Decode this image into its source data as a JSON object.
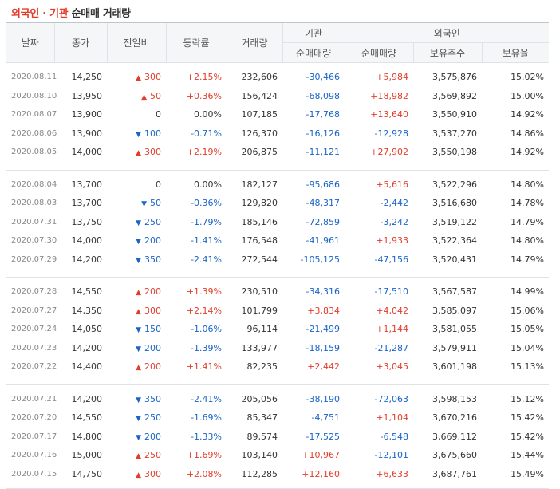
{
  "title": {
    "part1": "외국인 · 기관",
    "part2": "순매매 거래량"
  },
  "headers": {
    "date": "날짜",
    "close": "종가",
    "change": "전일비",
    "rate": "등락률",
    "volume": "거래량",
    "inst_group": "기관",
    "foreign_group": "외국인",
    "inst_net": "순매매량",
    "foreign_net": "순매매량",
    "holdings": "보유주수",
    "holding_ratio": "보유율"
  },
  "rows": [
    {
      "date": "2020.08.11",
      "close": "14,250",
      "dir": "up",
      "change": "300",
      "rate": "+2.15%",
      "volume": "232,606",
      "inst": "-30,466",
      "foreign": "+5,984",
      "holdings": "3,575,876",
      "ratio": "15.02%"
    },
    {
      "date": "2020.08.10",
      "close": "13,950",
      "dir": "up",
      "change": "50",
      "rate": "+0.36%",
      "volume": "156,424",
      "inst": "-68,098",
      "foreign": "+18,982",
      "holdings": "3,569,892",
      "ratio": "15.00%"
    },
    {
      "date": "2020.08.07",
      "close": "13,900",
      "dir": "none",
      "change": "0",
      "rate": "0.00%",
      "volume": "107,185",
      "inst": "-17,768",
      "foreign": "+13,640",
      "holdings": "3,550,910",
      "ratio": "14.92%"
    },
    {
      "date": "2020.08.06",
      "close": "13,900",
      "dir": "dn",
      "change": "100",
      "rate": "-0.71%",
      "volume": "126,370",
      "inst": "-16,126",
      "foreign": "-12,928",
      "holdings": "3,537,270",
      "ratio": "14.86%"
    },
    {
      "date": "2020.08.05",
      "close": "14,000",
      "dir": "up",
      "change": "300",
      "rate": "+2.19%",
      "volume": "206,875",
      "inst": "-11,121",
      "foreign": "+27,902",
      "holdings": "3,550,198",
      "ratio": "14.92%"
    },
    {
      "date": "2020.08.04",
      "close": "13,700",
      "dir": "none",
      "change": "0",
      "rate": "0.00%",
      "volume": "182,127",
      "inst": "-95,686",
      "foreign": "+5,616",
      "holdings": "3,522,296",
      "ratio": "14.80%"
    },
    {
      "date": "2020.08.03",
      "close": "13,700",
      "dir": "dn",
      "change": "50",
      "rate": "-0.36%",
      "volume": "129,820",
      "inst": "-48,317",
      "foreign": "-2,442",
      "holdings": "3,516,680",
      "ratio": "14.78%"
    },
    {
      "date": "2020.07.31",
      "close": "13,750",
      "dir": "dn",
      "change": "250",
      "rate": "-1.79%",
      "volume": "185,146",
      "inst": "-72,859",
      "foreign": "-3,242",
      "holdings": "3,519,122",
      "ratio": "14.79%"
    },
    {
      "date": "2020.07.30",
      "close": "14,000",
      "dir": "dn",
      "change": "200",
      "rate": "-1.41%",
      "volume": "176,548",
      "inst": "-41,961",
      "foreign": "+1,933",
      "holdings": "3,522,364",
      "ratio": "14.80%"
    },
    {
      "date": "2020.07.29",
      "close": "14,200",
      "dir": "dn",
      "change": "350",
      "rate": "-2.41%",
      "volume": "272,544",
      "inst": "-105,125",
      "foreign": "-47,156",
      "holdings": "3,520,431",
      "ratio": "14.79%"
    },
    {
      "date": "2020.07.28",
      "close": "14,550",
      "dir": "up",
      "change": "200",
      "rate": "+1.39%",
      "volume": "230,510",
      "inst": "-34,316",
      "foreign": "-17,510",
      "holdings": "3,567,587",
      "ratio": "14.99%"
    },
    {
      "date": "2020.07.27",
      "close": "14,350",
      "dir": "up",
      "change": "300",
      "rate": "+2.14%",
      "volume": "101,799",
      "inst": "+3,834",
      "foreign": "+4,042",
      "holdings": "3,585,097",
      "ratio": "15.06%"
    },
    {
      "date": "2020.07.24",
      "close": "14,050",
      "dir": "dn",
      "change": "150",
      "rate": "-1.06%",
      "volume": "96,114",
      "inst": "-21,499",
      "foreign": "+1,144",
      "holdings": "3,581,055",
      "ratio": "15.05%"
    },
    {
      "date": "2020.07.23",
      "close": "14,200",
      "dir": "dn",
      "change": "200",
      "rate": "-1.39%",
      "volume": "133,977",
      "inst": "-18,159",
      "foreign": "-21,287",
      "holdings": "3,579,911",
      "ratio": "15.04%"
    },
    {
      "date": "2020.07.22",
      "close": "14,400",
      "dir": "up",
      "change": "200",
      "rate": "+1.41%",
      "volume": "82,235",
      "inst": "+2,442",
      "foreign": "+3,045",
      "holdings": "3,601,198",
      "ratio": "15.13%"
    },
    {
      "date": "2020.07.21",
      "close": "14,200",
      "dir": "dn",
      "change": "350",
      "rate": "-2.41%",
      "volume": "205,056",
      "inst": "-38,190",
      "foreign": "-72,063",
      "holdings": "3,598,153",
      "ratio": "15.12%"
    },
    {
      "date": "2020.07.20",
      "close": "14,550",
      "dir": "dn",
      "change": "250",
      "rate": "-1.69%",
      "volume": "85,347",
      "inst": "-4,751",
      "foreign": "+1,104",
      "holdings": "3,670,216",
      "ratio": "15.42%"
    },
    {
      "date": "2020.07.17",
      "close": "14,800",
      "dir": "dn",
      "change": "200",
      "rate": "-1.33%",
      "volume": "89,574",
      "inst": "-17,525",
      "foreign": "-6,548",
      "holdings": "3,669,112",
      "ratio": "15.42%"
    },
    {
      "date": "2020.07.16",
      "close": "15,000",
      "dir": "up",
      "change": "250",
      "rate": "+1.69%",
      "volume": "103,140",
      "inst": "+10,967",
      "foreign": "-12,101",
      "holdings": "3,675,660",
      "ratio": "15.44%"
    },
    {
      "date": "2020.07.15",
      "close": "14,750",
      "dir": "up",
      "change": "300",
      "rate": "+2.08%",
      "volume": "112,285",
      "inst": "+12,160",
      "foreign": "+6,633",
      "holdings": "3,687,761",
      "ratio": "15.49%"
    }
  ],
  "colors": {
    "up": "#e23c2a",
    "down": "#1a64c8"
  },
  "icons": {
    "up": "triangle-up-icon",
    "down": "triangle-down-icon"
  }
}
